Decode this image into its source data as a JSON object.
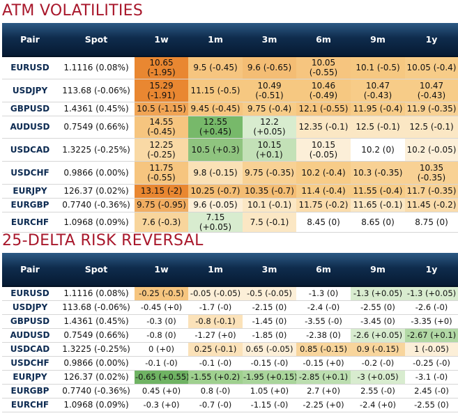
{
  "atm": {
    "title": "ATM VOLATILITIES",
    "headers": [
      "Pair",
      "Spot",
      "1w",
      "1m",
      "3m",
      "6m",
      "9m",
      "1y"
    ],
    "rows": [
      {
        "pair": "EURUSD",
        "spot": "1.1116 (0.08%)",
        "cells": [
          {
            "text": "10.65 (-1.95)",
            "bg": "#e98731"
          },
          {
            "text": "9.5 (-0.45)",
            "bg": "#f6c57f"
          },
          {
            "text": "9.6 (-0.65)",
            "bg": "#f4bd74"
          },
          {
            "text": "10.05 (-0.55)",
            "bg": "#f6c57f"
          },
          {
            "text": "10.1 (-0.5)",
            "bg": "#f6c881"
          },
          {
            "text": "10.05 (-0.4)",
            "bg": "#f7cc88"
          }
        ]
      },
      {
        "pair": "USDJPY",
        "spot": "113.68 (-0.06%)",
        "cells": [
          {
            "text": "15.29 (-1.91)",
            "bg": "#e98731"
          },
          {
            "text": "11.15 (-0.5)",
            "bg": "#f6c881"
          },
          {
            "text": "10.49 (-0.51)",
            "bg": "#f6c881"
          },
          {
            "text": "10.46 (-0.49)",
            "bg": "#f6c881"
          },
          {
            "text": "10.47 (-0.43)",
            "bg": "#f7cc88"
          },
          {
            "text": "10.47 (-0.43)",
            "bg": "#f7cc88"
          }
        ]
      },
      {
        "pair": "GBPUSD",
        "spot": "1.4361 (0.45%)",
        "cells": [
          {
            "text": "10.5 (-1.15)",
            "bg": "#f0a455"
          },
          {
            "text": "9.45 (-0.45)",
            "bg": "#f6c57f"
          },
          {
            "text": "9.75 (-0.4)",
            "bg": "#f7cc88"
          },
          {
            "text": "12.1 (-0.55)",
            "bg": "#f6c57f"
          },
          {
            "text": "11.95 (-0.4)",
            "bg": "#f7cc88"
          },
          {
            "text": "11.9 (-0.35)",
            "bg": "#f8d194"
          }
        ]
      },
      {
        "pair": "AUDUSD",
        "spot": "0.7549 (0.66%)",
        "cells": [
          {
            "text": "14.55 (-0.45)",
            "bg": "#f6c57f"
          },
          {
            "text": "12.55 (+0.45)",
            "bg": "#77b96a"
          },
          {
            "text": "12.2 (+0.05)",
            "bg": "#d8eccf"
          },
          {
            "text": "12.35 (-0.1)",
            "bg": "#fbe7c4"
          },
          {
            "text": "12.5 (-0.1)",
            "bg": "#fbe7c4"
          },
          {
            "text": "12.5 (-0.1)",
            "bg": "#fbe7c4"
          }
        ]
      },
      {
        "pair": "USDCAD",
        "spot": "1.3225 (-0.25%)",
        "cells": [
          {
            "text": "12.25 (-0.25)",
            "bg": "#f9d9a5"
          },
          {
            "text": "10.5 (+0.3)",
            "bg": "#8fc47f"
          },
          {
            "text": "10.15 (+0.1)",
            "bg": "#c3e1b7"
          },
          {
            "text": "10.15 (-0.05)",
            "bg": "#fcefd8"
          },
          {
            "text": "10.2 (0)",
            "bg": "#ffffff"
          },
          {
            "text": "10.2 (-0.05)",
            "bg": "#fcefd8"
          }
        ]
      },
      {
        "pair": "USDCHF",
        "spot": "0.9866 (0.00%)",
        "cells": [
          {
            "text": "11.75 (-0.55)",
            "bg": "#f6c57f"
          },
          {
            "text": "9.8 (-0.15)",
            "bg": "#fae1b6"
          },
          {
            "text": "9.75 (-0.35)",
            "bg": "#f8d194"
          },
          {
            "text": "10.2 (-0.4)",
            "bg": "#f7cc88"
          },
          {
            "text": "10.3 (-0.35)",
            "bg": "#f8d194"
          },
          {
            "text": "10.35 (-0.35)",
            "bg": "#f8d194"
          }
        ]
      },
      {
        "pair": "EURJPY",
        "spot": "126.37 (0.02%)",
        "cells": [
          {
            "text": "13.15 (-2)",
            "bg": "#e98731"
          },
          {
            "text": "10.25 (-0.7)",
            "bg": "#f4bd74"
          },
          {
            "text": "10.35 (-0.7)",
            "bg": "#f4bd74"
          },
          {
            "text": "11.4 (-0.4)",
            "bg": "#f7cc88"
          },
          {
            "text": "11.55 (-0.4)",
            "bg": "#f7cc88"
          },
          {
            "text": "11.7 (-0.35)",
            "bg": "#f8d194"
          }
        ]
      },
      {
        "pair": "EURGBP",
        "spot": "0.7740 (-0.36%)",
        "cells": [
          {
            "text": "9.75 (-0.95)",
            "bg": "#f1ad61"
          },
          {
            "text": "9.6 (-0.05)",
            "bg": "#fcefd8"
          },
          {
            "text": "10.1 (-0.1)",
            "bg": "#fbe7c4"
          },
          {
            "text": "11.75 (-0.2)",
            "bg": "#fadcac"
          },
          {
            "text": "11.65 (-0.1)",
            "bg": "#fbe7c4"
          },
          {
            "text": "11.45 (-0.2)",
            "bg": "#fadcac"
          }
        ]
      },
      {
        "pair": "EURCHF",
        "spot": "1.0968 (0.09%)",
        "cells": [
          {
            "text": "7.6 (-0.3)",
            "bg": "#f8d59c"
          },
          {
            "text": "7.15 (+0.05)",
            "bg": "#d8eccf"
          },
          {
            "text": "7.5 (-0.1)",
            "bg": "#fbe7c4"
          },
          {
            "text": "8.45 (0)",
            "bg": "#ffffff"
          },
          {
            "text": "8.65 (0)",
            "bg": "#ffffff"
          },
          {
            "text": "8.75 (0)",
            "bg": "#ffffff"
          }
        ]
      }
    ]
  },
  "rr": {
    "title": "25-DELTA RISK REVERSAL",
    "headers": [
      "Pair",
      "Spot",
      "1w",
      "1m",
      "3m",
      "6m",
      "9m",
      "1y"
    ],
    "rows": [
      {
        "pair": "EURUSD",
        "spot": "1.1116 (0.08%)",
        "cells": [
          {
            "text": "-0.25 (-0.5)",
            "bg": "#f6c57f"
          },
          {
            "text": "-0.05 (-0.05)",
            "bg": "#fcefd8"
          },
          {
            "text": "-0.5 (-0.05)",
            "bg": "#fcefd8"
          },
          {
            "text": "-1.3 (0)",
            "bg": "#ffffff"
          },
          {
            "text": "-1.3 (+0.05)",
            "bg": "#d8eccf"
          },
          {
            "text": "-1.3 (+0.05)",
            "bg": "#d8eccf"
          }
        ]
      },
      {
        "pair": "USDJPY",
        "spot": "113.68 (-0.06%)",
        "cells": [
          {
            "text": "-0.45 (+0)",
            "bg": "#ffffff"
          },
          {
            "text": "-1.7 (-0)",
            "bg": "#ffffff"
          },
          {
            "text": "-2.15 (0)",
            "bg": "#ffffff"
          },
          {
            "text": "-2.4 (-0)",
            "bg": "#ffffff"
          },
          {
            "text": "-2.55 (0)",
            "bg": "#ffffff"
          },
          {
            "text": "-2.6 (-0)",
            "bg": "#ffffff"
          }
        ]
      },
      {
        "pair": "GBPUSD",
        "spot": "1.4361 (0.45%)",
        "cells": [
          {
            "text": "-0.3 (0)",
            "bg": "#ffffff"
          },
          {
            "text": "-0.8 (-0.1)",
            "bg": "#fbe2b9"
          },
          {
            "text": "-1.45 (0)",
            "bg": "#ffffff"
          },
          {
            "text": "-3.55 (-0)",
            "bg": "#ffffff"
          },
          {
            "text": "-3.45 (0)",
            "bg": "#ffffff"
          },
          {
            "text": "-3.35 (+0)",
            "bg": "#ffffff"
          }
        ]
      },
      {
        "pair": "AUDUSD",
        "spot": "0.7549 (0.66%)",
        "cells": [
          {
            "text": "-0.8 (0)",
            "bg": "#ffffff"
          },
          {
            "text": "-1.27 (+0)",
            "bg": "#ffffff"
          },
          {
            "text": "-1.85 (0)",
            "bg": "#ffffff"
          },
          {
            "text": "-2.38 (0)",
            "bg": "#ffffff"
          },
          {
            "text": "-2.6 (+0.05)",
            "bg": "#d8eccf"
          },
          {
            "text": "-2.67 (+0.1)",
            "bg": "#b2d9a5"
          }
        ]
      },
      {
        "pair": "USDCAD",
        "spot": "1.3225 (-0.25%)",
        "cells": [
          {
            "text": "0 (+0)",
            "bg": "#ffffff"
          },
          {
            "text": "0.25 (-0.1)",
            "bg": "#fbe2b9"
          },
          {
            "text": "0.65 (-0.05)",
            "bg": "#fcefd8"
          },
          {
            "text": "0.85 (-0.15)",
            "bg": "#f8d59c"
          },
          {
            "text": "0.9 (-0.15)",
            "bg": "#f8d59c"
          },
          {
            "text": "1 (-0.05)",
            "bg": "#fcefd8"
          }
        ]
      },
      {
        "pair": "USDCHF",
        "spot": "0.9866 (0.00%)",
        "cells": [
          {
            "text": "-0.1 (-0)",
            "bg": "#ffffff"
          },
          {
            "text": "-0.1 (-0)",
            "bg": "#ffffff"
          },
          {
            "text": "-0.15 (-0)",
            "bg": "#ffffff"
          },
          {
            "text": "-0.15 (+0)",
            "bg": "#ffffff"
          },
          {
            "text": "-0.2 (-0)",
            "bg": "#ffffff"
          },
          {
            "text": "-0.25 (-0)",
            "bg": "#ffffff"
          }
        ]
      },
      {
        "pair": "EURJPY",
        "spot": "126.37 (0.02%)",
        "cells": [
          {
            "text": "-0.65 (+0.55)",
            "bg": "#6fb363"
          },
          {
            "text": "-1.55 (+0.2)",
            "bg": "#9fd08f"
          },
          {
            "text": "-1.95 (+0.15)",
            "bg": "#a9d59b"
          },
          {
            "text": "-2.85 (+0.1)",
            "bg": "#bcdeb0"
          },
          {
            "text": "-3 (+0.05)",
            "bg": "#d8eccf"
          },
          {
            "text": "-3.1 (-0)",
            "bg": "#ffffff"
          }
        ]
      },
      {
        "pair": "EURGBP",
        "spot": "0.7740 (-0.36%)",
        "cells": [
          {
            "text": "0.45 (+0)",
            "bg": "#ffffff"
          },
          {
            "text": "0.8 (-0)",
            "bg": "#ffffff"
          },
          {
            "text": "1.05 (+0)",
            "bg": "#ffffff"
          },
          {
            "text": "2.7 (+0)",
            "bg": "#ffffff"
          },
          {
            "text": "2.55 (-0)",
            "bg": "#ffffff"
          },
          {
            "text": "2.45 (-0)",
            "bg": "#ffffff"
          }
        ]
      },
      {
        "pair": "EURCHF",
        "spot": "1.0968 (0.09%)",
        "cells": [
          {
            "text": "-0.3 (+0)",
            "bg": "#ffffff"
          },
          {
            "text": "-0.7 (-0)",
            "bg": "#ffffff"
          },
          {
            "text": "-1.15 (-0)",
            "bg": "#ffffff"
          },
          {
            "text": "-2.25 (+0)",
            "bg": "#ffffff"
          },
          {
            "text": "-2.4 (+0)",
            "bg": "#ffffff"
          },
          {
            "text": "-2.55 (0)",
            "bg": "#ffffff"
          }
        ]
      }
    ]
  }
}
